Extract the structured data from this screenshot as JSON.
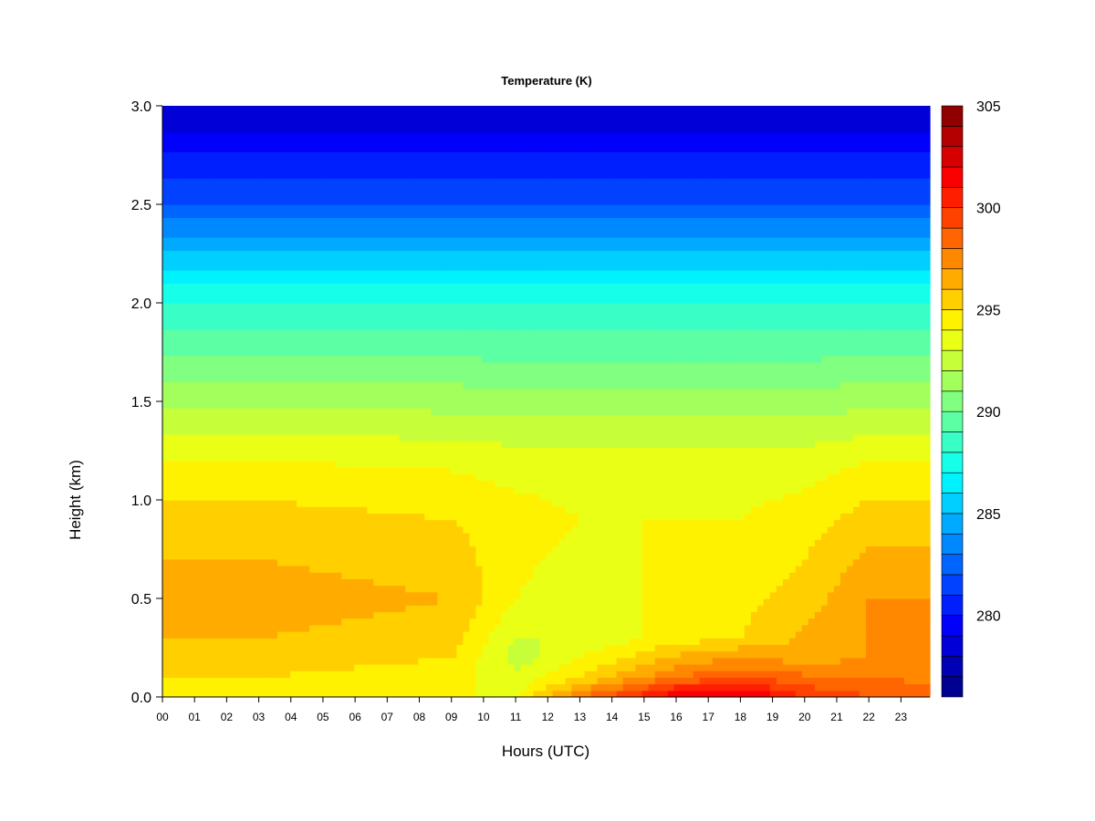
{
  "chart_data": {
    "type": "heatmap",
    "title": "Temperature (K)",
    "xlabel": "Hours (UTC)",
    "ylabel": "Height (km)",
    "x_ticks": [
      "00",
      "01",
      "02",
      "03",
      "04",
      "05",
      "06",
      "07",
      "08",
      "09",
      "10",
      "11",
      "12",
      "13",
      "14",
      "15",
      "16",
      "17",
      "18",
      "19",
      "20",
      "21",
      "22",
      "23"
    ],
    "x_range": [
      0,
      23.9
    ],
    "y_ticks": [
      "0.0",
      "0.5",
      "1.0",
      "1.5",
      "2.0",
      "2.5",
      "3.0"
    ],
    "y_range": [
      0,
      3.0
    ],
    "colorbar": {
      "ticks": [
        "280",
        "285",
        "290",
        "295",
        "300",
        "305"
      ],
      "range": [
        276,
        305
      ],
      "levels": 29,
      "colormap": "jet"
    },
    "profiles": [
      {
        "hour": 0,
        "heights": [
          0,
          0.3,
          0.5,
          0.9,
          1.2,
          2.0,
          2.5,
          3.0
        ],
        "temps": [
          294.5,
          296,
          296.5,
          295.5,
          294,
          288,
          282,
          278
        ]
      },
      {
        "hour": 3,
        "heights": [
          0,
          0.3,
          0.5,
          0.9,
          1.2,
          2.0,
          2.5,
          3.0
        ],
        "temps": [
          294.5,
          296,
          296.5,
          295.5,
          294,
          288,
          282,
          278
        ]
      },
      {
        "hour": 9,
        "heights": [
          0,
          0.3,
          0.5,
          0.9,
          1.2,
          2.0,
          2.5,
          3.0
        ],
        "temps": [
          294,
          295.5,
          296,
          295,
          293.8,
          288,
          282,
          278
        ]
      },
      {
        "hour": 11,
        "heights": [
          0,
          0.2,
          0.5,
          0.9,
          1.2,
          2.0,
          2.5,
          3.0
        ],
        "temps": [
          294,
          292.5,
          294,
          294.5,
          293.5,
          288,
          282,
          278
        ]
      },
      {
        "hour": 13,
        "heights": [
          0,
          0.1,
          0.3,
          0.9,
          1.2,
          2.0,
          2.5,
          3.0
        ],
        "temps": [
          298,
          295,
          293,
          294,
          293.5,
          288,
          282,
          278
        ]
      },
      {
        "hour": 16,
        "heights": [
          0,
          0.1,
          0.3,
          0.9,
          1.2,
          2.0,
          2.5,
          3.0
        ],
        "temps": [
          302,
          298,
          294.5,
          294,
          293.5,
          288,
          282,
          278
        ]
      },
      {
        "hour": 18,
        "heights": [
          0,
          0.1,
          0.3,
          0.9,
          1.2,
          2.0,
          2.5,
          3.0
        ],
        "temps": [
          302.5,
          299,
          295,
          294,
          293.5,
          288,
          282,
          278
        ]
      },
      {
        "hour": 20,
        "heights": [
          0,
          0.2,
          0.5,
          0.9,
          1.2,
          2.0,
          2.5,
          3.0
        ],
        "temps": [
          300,
          296.5,
          295.5,
          294.5,
          293.5,
          288,
          282,
          278
        ]
      },
      {
        "hour": 22,
        "heights": [
          0,
          0.2,
          0.5,
          0.9,
          1.2,
          2.0,
          2.5,
          3.0
        ],
        "temps": [
          299,
          297,
          297,
          295.5,
          294,
          288,
          282,
          278
        ]
      },
      {
        "hour": 23.9,
        "heights": [
          0,
          0.2,
          0.5,
          0.9,
          1.2,
          2.0,
          2.5,
          3.0
        ],
        "temps": [
          298.5,
          297,
          297,
          295.5,
          294,
          288,
          282,
          278
        ]
      }
    ]
  }
}
